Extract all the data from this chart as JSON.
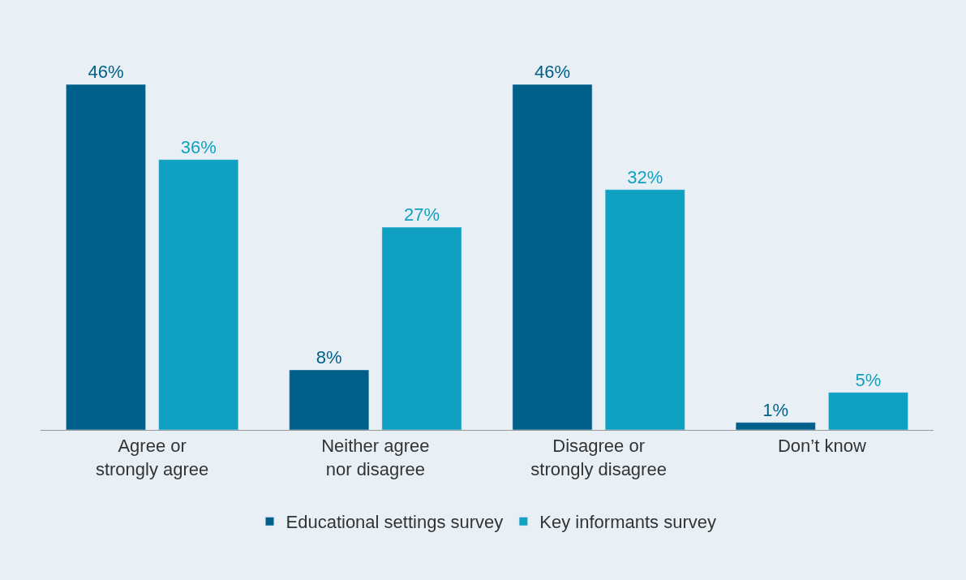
{
  "chart_data": {
    "type": "bar",
    "categories": [
      "Agree or\nstrongly agree",
      "Neither agree\nnor disagree",
      "Disagree or\nstrongly disagree",
      "Don’t know"
    ],
    "series": [
      {
        "name": "Educational settings survey",
        "color": "#006089",
        "values": [
          46,
          8,
          46,
          1
        ],
        "value_labels": [
          "46%",
          "8%",
          "46%",
          "1%"
        ]
      },
      {
        "name": "Key informants survey",
        "color": "#0fa0c2",
        "values": [
          36,
          27,
          32,
          5
        ],
        "value_labels": [
          "36%",
          "27%",
          "32%",
          "5%"
        ]
      }
    ],
    "legend": "bottom",
    "grid": false
  }
}
